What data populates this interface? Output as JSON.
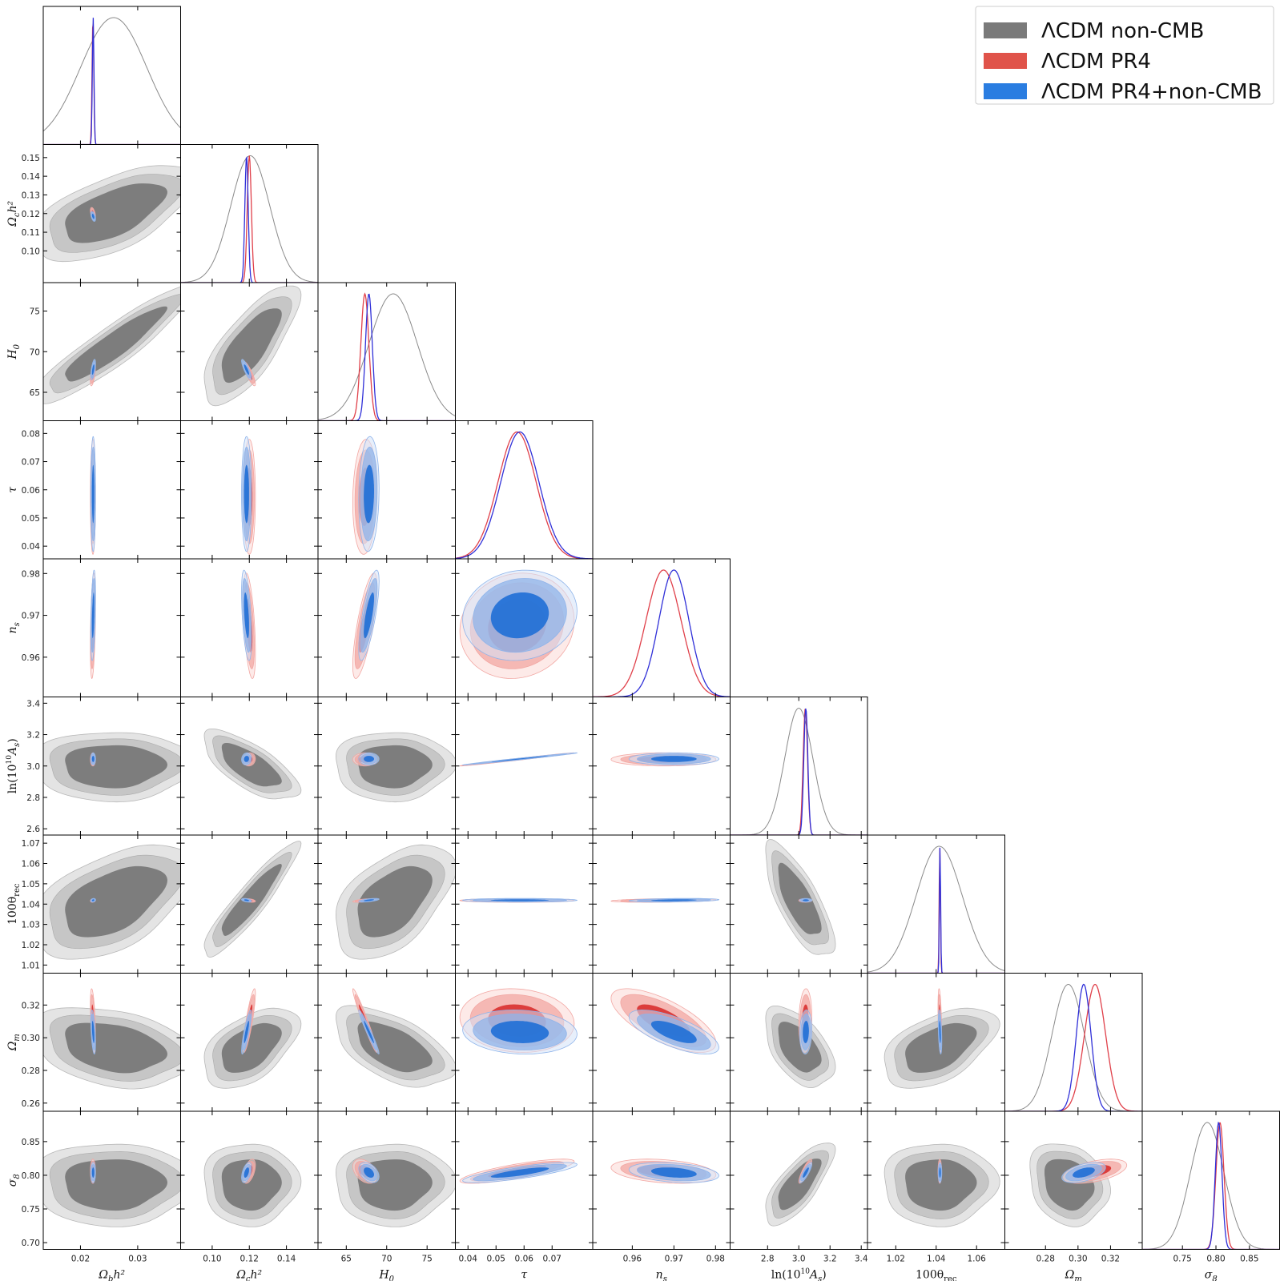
{
  "chart_data": {
    "type": "corner",
    "title": "",
    "legend": {
      "placement": "top-right",
      "entries": [
        {
          "label": "ΛCDM non-CMB",
          "color": "#7a7a7a"
        },
        {
          "label": "ΛCDM PR4",
          "color": "#e0534a"
        },
        {
          "label": "ΛCDM PR4+non-CMB",
          "color": "#2a7de1"
        }
      ]
    },
    "series_colors": {
      "nonCMB": {
        "line": "#8a8a8a",
        "fill_inner": "#7d7d7d",
        "fill_outer": "#c6c6c6",
        "fill_outer2": "#e4e4e4"
      },
      "PR4": {
        "line": "#e0404a",
        "fill_inner": "#d9302f",
        "fill_outer": "#f2a7a3",
        "fill_outer2": "#fbd8d5"
      },
      "PR4nonCMB": {
        "line": "#3030d8",
        "fill_inner": "#1f6fd6",
        "fill_outer": "#8fb4ea",
        "fill_outer2": "#d3e2f8"
      }
    },
    "parameters": [
      {
        "name": "omegabh2",
        "label_main": "Ω",
        "label_sub": "b",
        "label_suffix": "h²",
        "axis_label": "Ωbh²",
        "range": [
          0.0135,
          0.0375
        ],
        "ticks": [
          0.02,
          0.03
        ],
        "tick_labels": [
          "0.02",
          "0.03"
        ],
        "nonCMB": {
          "mean": 0.0258,
          "sigma": 0.0058
        },
        "PR4": {
          "mean": 0.02218,
          "sigma": 0.00015
        },
        "PR4nonCMB": {
          "mean": 0.02222,
          "sigma": 0.00014
        }
      },
      {
        "name": "omegach2",
        "label_main": "Ω",
        "label_sub": "c",
        "label_suffix": "h²",
        "axis_label": "Ωch²",
        "range": [
          0.083,
          0.157
        ],
        "ticks": [
          0.1,
          0.12,
          0.14
        ],
        "tick_labels": [
          "0.10",
          "0.12",
          "0.14"
        ],
        "left_ticks": [
          0.1,
          0.11,
          0.12,
          0.13,
          0.14,
          0.15
        ],
        "left_tick_labels": [
          "0.10",
          "0.11",
          "0.12",
          "0.13",
          "0.14",
          "0.15"
        ],
        "nonCMB": {
          "mean": 0.1205,
          "sigma": 0.0105
        },
        "PR4": {
          "mean": 0.12,
          "sigma": 0.0011
        },
        "PR4nonCMB": {
          "mean": 0.1185,
          "sigma": 0.0009
        }
      },
      {
        "name": "H0",
        "label_main": "H",
        "label_sub": "0",
        "label_suffix": "",
        "axis_label": "H0",
        "range": [
          61.5,
          78.5
        ],
        "ticks": [
          65,
          70,
          75
        ],
        "tick_labels": [
          "65",
          "70",
          "75"
        ],
        "nonCMB": {
          "mean": 70.8,
          "sigma": 3.0
        },
        "PR4": {
          "mean": 67.3,
          "sigma": 0.5
        },
        "PR4nonCMB": {
          "mean": 67.8,
          "sigma": 0.42
        }
      },
      {
        "name": "tau",
        "label_main": "τ",
        "label_sub": "",
        "label_suffix": "",
        "axis_label": "τ",
        "range": [
          0.0355,
          0.0845
        ],
        "ticks": [
          0.04,
          0.05,
          0.06,
          0.07
        ],
        "tick_labels": [
          "0.04",
          "0.05",
          "0.06",
          "0.07"
        ],
        "left_ticks": [
          0.04,
          0.05,
          0.06,
          0.07,
          0.08
        ],
        "left_tick_labels": [
          "0.04",
          "0.05",
          "0.06",
          "0.07",
          "0.08"
        ],
        "PR4": {
          "mean": 0.0575,
          "sigma": 0.0068
        },
        "PR4nonCMB": {
          "mean": 0.0585,
          "sigma": 0.0068
        }
      },
      {
        "name": "ns",
        "label_main": "n",
        "label_sub": "s",
        "label_suffix": "",
        "axis_label": "ns",
        "range": [
          0.9505,
          0.9835
        ],
        "ticks": [
          0.96,
          0.97,
          0.98
        ],
        "tick_labels": [
          "0.96",
          "0.97",
          "0.98"
        ],
        "PR4": {
          "mean": 0.9675,
          "sigma": 0.0042
        },
        "PR4nonCMB": {
          "mean": 0.97,
          "sigma": 0.0036
        }
      },
      {
        "name": "logA",
        "label_main": "ln(10",
        "label_sub": "",
        "label_suffix": "A",
        "axis_label": "ln(10^10 As)",
        "range": [
          2.56,
          3.44
        ],
        "ticks": [
          2.8,
          3.0,
          3.2,
          3.4
        ],
        "tick_labels": [
          "2.8",
          "3.0",
          "3.2",
          "3.4"
        ],
        "left_ticks": [
          2.6,
          2.8,
          3.0,
          3.2,
          3.4
        ],
        "left_tick_labels": [
          "2.6",
          "2.8",
          "3.0",
          "3.2",
          "3.4"
        ],
        "nonCMB": {
          "mean": 3.0,
          "sigma": 0.09
        },
        "PR4": {
          "mean": 3.042,
          "sigma": 0.014
        },
        "PR4nonCMB": {
          "mean": 3.045,
          "sigma": 0.013
        }
      },
      {
        "name": "theta",
        "label_main": "100θ",
        "label_sub": "rec",
        "label_suffix": "",
        "axis_label": "100θrec",
        "range": [
          1.006,
          1.074
        ],
        "ticks": [
          1.02,
          1.04,
          1.06
        ],
        "tick_labels": [
          "1.02",
          "1.04",
          "1.06"
        ],
        "left_ticks": [
          1.01,
          1.02,
          1.03,
          1.04,
          1.05,
          1.06,
          1.07
        ],
        "left_tick_labels": [
          "1.01",
          "1.02",
          "1.03",
          "1.04",
          "1.05",
          "1.06",
          "1.07"
        ],
        "nonCMB": {
          "mean": 1.0415,
          "sigma": 0.0115
        },
        "PR4": {
          "mean": 1.0418,
          "sigma": 0.0003
        },
        "PR4nonCMB": {
          "mean": 1.0419,
          "sigma": 0.0003
        }
      },
      {
        "name": "omegam",
        "label_main": "Ω",
        "label_sub": "m",
        "label_suffix": "",
        "axis_label": "Ωm",
        "range": [
          0.255,
          0.3395
        ],
        "ticks": [
          0.28,
          0.3,
          0.32
        ],
        "tick_labels": [
          "0.28",
          "0.30",
          "0.32"
        ],
        "left_ticks": [
          0.26,
          0.28,
          0.3,
          0.32
        ],
        "left_tick_labels": [
          "0.26",
          "0.28",
          "0.30",
          "0.32"
        ],
        "nonCMB": {
          "mean": 0.294,
          "sigma": 0.01
        },
        "PR4": {
          "mean": 0.3105,
          "sigma": 0.0065
        },
        "PR4nonCMB": {
          "mean": 0.3035,
          "sigma": 0.0045
        }
      },
      {
        "name": "sigma8",
        "label_main": "σ",
        "label_sub": "8",
        "label_suffix": "",
        "axis_label": "σ8",
        "range": [
          0.69,
          0.895
        ],
        "ticks": [
          0.75,
          0.8,
          0.85
        ],
        "tick_labels": [
          "0.75",
          "0.80",
          "0.85"
        ],
        "left_ticks": [
          0.7,
          0.75,
          0.8,
          0.85
        ],
        "left_tick_labels": [
          "0.70",
          "0.75",
          "0.80",
          "0.85"
        ],
        "nonCMB": {
          "mean": 0.787,
          "sigma": 0.025
        },
        "PR4": {
          "mean": 0.806,
          "sigma": 0.006
        },
        "PR4nonCMB": {
          "mean": 0.804,
          "sigma": 0.005
        }
      }
    ],
    "correlations": {
      "nonCMB": {
        "0_1": 0.6,
        "0_2": 0.92,
        "1_2": 0.75,
        "0_5": 0.0,
        "1_5": -0.7,
        "2_5": 0.0,
        "0_6": 0.5,
        "1_6": 0.92,
        "2_6": 0.5,
        "5_6": -0.75,
        "0_7": -0.3,
        "1_7": 0.5,
        "2_7": -0.55,
        "5_7": -0.5,
        "6_7": 0.5,
        "0_8": 0.0,
        "1_8": 0.0,
        "2_8": 0.0,
        "5_8": 0.75,
        "6_8": 0.0,
        "7_8": -0.2
      },
      "PR4": {
        "0_1": -0.5,
        "0_2": 0.6,
        "1_2": -0.85,
        "0_3": 0.0,
        "1_3": 0.0,
        "2_3": 0.1,
        "0_4": 0.4,
        "1_4": -0.5,
        "2_4": 0.75,
        "3_4": 0.1,
        "0_5": 0.0,
        "1_5": 0.1,
        "2_5": 0.0,
        "3_5": 0.99,
        "4_5": 0.0,
        "0_6": 0.2,
        "1_6": -0.4,
        "2_6": 0.6,
        "3_6": 0.0,
        "4_6": 0.3,
        "5_6": 0.0,
        "0_7": -0.5,
        "1_7": 0.85,
        "2_7": -0.97,
        "3_7": -0.1,
        "4_7": -0.7,
        "5_7": 0.1,
        "6_7": -0.4,
        "0_8": 0.0,
        "1_8": 0.5,
        "2_8": -0.4,
        "3_8": 0.8,
        "4_8": -0.3,
        "5_8": 0.85,
        "6_8": 0.0,
        "7_8": 0.5
      },
      "PR4nonCMB": {
        "0_1": -0.5,
        "0_2": 0.6,
        "1_2": -0.85,
        "0_3": 0.0,
        "1_3": 0.0,
        "2_3": 0.1,
        "0_4": 0.4,
        "1_4": -0.5,
        "2_4": 0.75,
        "3_4": 0.1,
        "0_5": 0.0,
        "1_5": 0.1,
        "2_5": 0.0,
        "3_5": 0.99,
        "4_5": 0.0,
        "0_6": 0.2,
        "1_6": -0.4,
        "2_6": 0.6,
        "3_6": 0.0,
        "4_6": 0.3,
        "5_6": 0.0,
        "0_7": -0.5,
        "1_7": 0.85,
        "2_7": -0.97,
        "3_7": -0.1,
        "4_7": -0.7,
        "5_7": 0.1,
        "6_7": -0.4,
        "0_8": 0.0,
        "1_8": 0.5,
        "2_8": -0.4,
        "3_8": 0.8,
        "4_8": -0.3,
        "5_8": 0.85,
        "6_8": 0.0,
        "7_8": 0.5
      }
    }
  }
}
